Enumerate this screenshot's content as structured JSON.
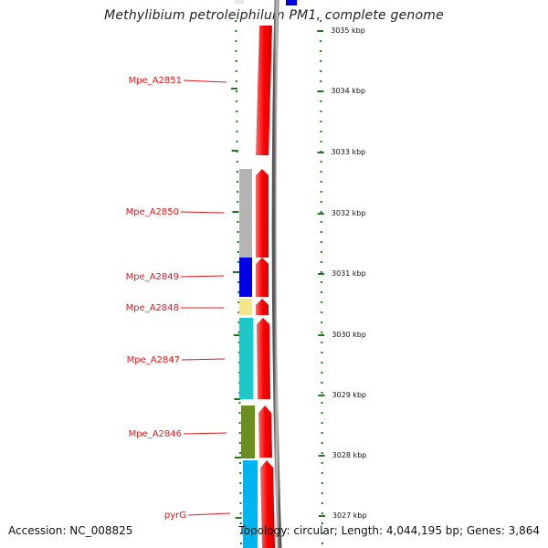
{
  "header": {
    "title": "Methylibium petroleiphilum PM1, complete genome"
  },
  "footer": {
    "accession": "Accession: NC_008825",
    "summary": "Topology: circular; Length: 4,044,195 bp; Genes: 3,864"
  },
  "scale": {
    "unit": "kbp",
    "ticks": [
      "3035 kbp",
      "3034 kbp",
      "3033 kbp",
      "3032 kbp",
      "3031 kbp",
      "3030 kbp",
      "3029 kbp",
      "3028 kbp",
      "3027 kbp"
    ]
  },
  "genes": [
    {
      "name": "Mpe_A2851",
      "color": "#ff0000"
    },
    {
      "name": "Mpe_A2850",
      "color": "#b4b4b4"
    },
    {
      "name": "Mpe_A2849",
      "color": "#0000e6"
    },
    {
      "name": "Mpe_A2848",
      "color": "#f2e68c"
    },
    {
      "name": "Mpe_A2847",
      "color": "#1ec8c8"
    },
    {
      "name": "Mpe_A2846",
      "color": "#6b8e23"
    },
    {
      "name": "pyrG",
      "color": "#00b4f0"
    }
  ],
  "colors": {
    "gene_label": "#e01818",
    "tick_marks": "#1a7a1a",
    "strand_arrow": "#ff0000",
    "backbone": "#888888"
  }
}
